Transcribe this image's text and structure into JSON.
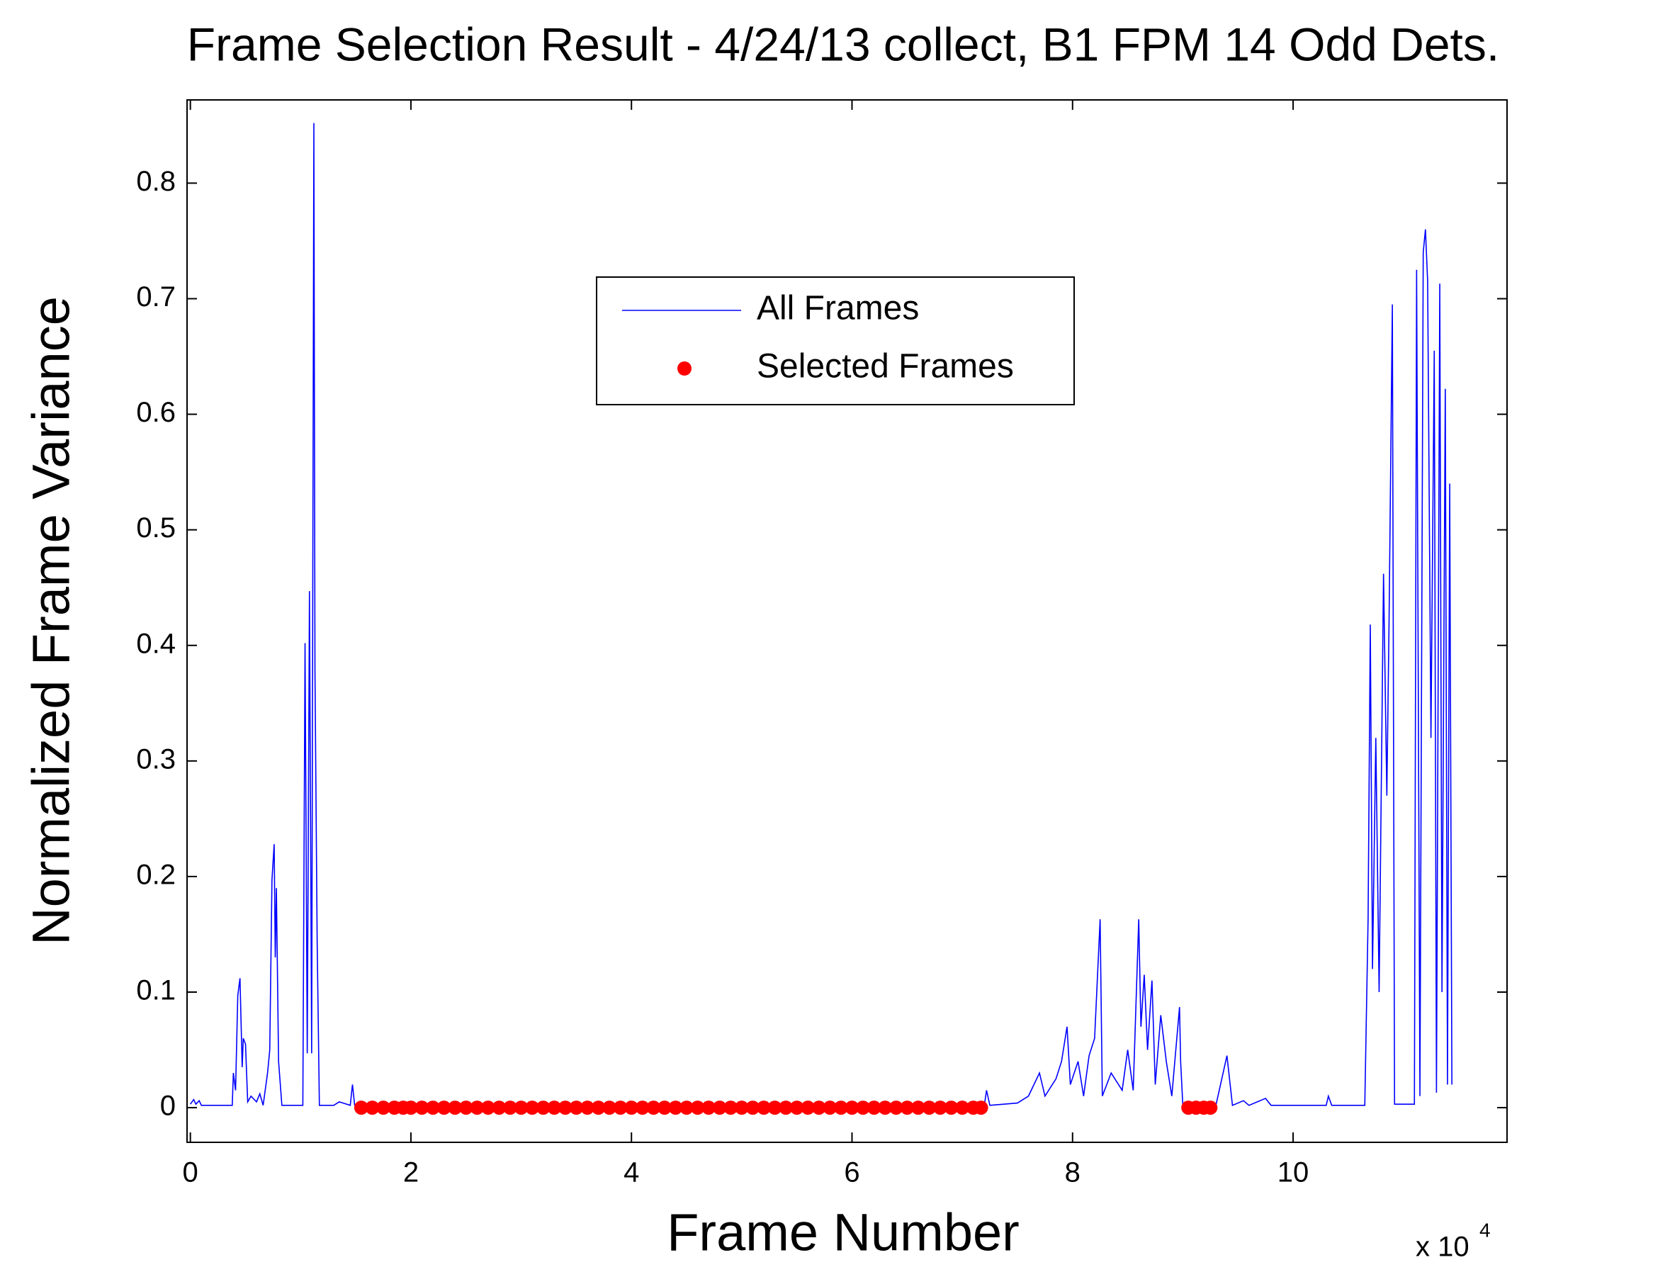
{
  "chart_data": {
    "type": "line",
    "title": "Frame Selection Result - 4/24/13 collect, B1 FPM 14 Odd Dets.",
    "x_label": "Frame Number",
    "y_label": "Normalized Frame Variance",
    "x_multiplier": {
      "base": "x 10",
      "exponent": "4"
    },
    "xlim": [
      -0.03,
      11.94
    ],
    "xticks": [
      0,
      2,
      4,
      6,
      8,
      10
    ],
    "ylim": [
      -0.03,
      0.872
    ],
    "yticks": [
      0,
      0.1,
      0.2,
      0.3,
      0.4,
      0.5,
      0.6,
      0.7,
      0.8
    ],
    "grid": false,
    "legend_position": "north",
    "series": [
      {
        "name": "All Frames",
        "color": "#0000ff",
        "style": "line",
        "x": [
          0.0,
          0.03,
          0.05,
          0.08,
          0.1,
          0.38,
          0.39,
          0.41,
          0.43,
          0.45,
          0.47,
          0.48,
          0.5,
          0.52,
          0.55,
          0.6,
          0.63,
          0.66,
          0.7,
          0.72,
          0.74,
          0.76,
          0.77,
          0.78,
          0.8,
          0.83,
          1.02,
          1.04,
          1.06,
          1.08,
          1.1,
          1.12,
          1.13,
          1.15,
          1.17,
          1.3,
          1.35,
          1.45,
          1.47,
          1.49,
          1.5,
          7.18,
          7.2,
          7.22,
          7.25,
          7.5,
          7.6,
          7.7,
          7.75,
          7.85,
          7.9,
          7.95,
          7.98,
          8.05,
          8.1,
          8.15,
          8.2,
          8.25,
          8.27,
          8.35,
          8.45,
          8.5,
          8.55,
          8.6,
          8.62,
          8.65,
          8.68,
          8.72,
          8.75,
          8.8,
          8.85,
          8.9,
          8.97,
          8.98,
          9.0,
          9.3,
          9.4,
          9.45,
          9.55,
          9.6,
          9.75,
          9.8,
          10.3,
          10.32,
          10.35,
          10.65,
          10.68,
          10.7,
          10.72,
          10.75,
          10.78,
          10.82,
          10.85,
          10.87,
          10.9,
          10.92,
          11.1,
          11.12,
          11.15,
          11.18,
          11.2,
          11.22,
          11.25,
          11.28,
          11.3,
          11.33,
          11.35,
          11.38,
          11.4,
          11.42,
          11.44
        ],
        "values": [
          0.003,
          0.007,
          0.003,
          0.006,
          0.002,
          0.002,
          0.03,
          0.015,
          0.097,
          0.112,
          0.035,
          0.06,
          0.055,
          0.005,
          0.01,
          0.005,
          0.012,
          0.002,
          0.03,
          0.05,
          0.197,
          0.228,
          0.13,
          0.19,
          0.04,
          0.002,
          0.002,
          0.402,
          0.047,
          0.447,
          0.047,
          0.852,
          0.378,
          0.143,
          0.002,
          0.002,
          0.005,
          0.002,
          0.02,
          0.002,
          0.002,
          0.002,
          0.002,
          0.015,
          0.002,
          0.004,
          0.01,
          0.03,
          0.01,
          0.025,
          0.04,
          0.07,
          0.02,
          0.04,
          0.01,
          0.045,
          0.06,
          0.163,
          0.01,
          0.03,
          0.015,
          0.05,
          0.015,
          0.163,
          0.07,
          0.115,
          0.05,
          0.11,
          0.02,
          0.08,
          0.04,
          0.01,
          0.087,
          0.04,
          0.002,
          0.002,
          0.045,
          0.002,
          0.006,
          0.002,
          0.008,
          0.002,
          0.002,
          0.01,
          0.002,
          0.002,
          0.163,
          0.418,
          0.12,
          0.32,
          0.1,
          0.462,
          0.27,
          0.42,
          0.695,
          0.003,
          0.003,
          0.725,
          0.01,
          0.74,
          0.76,
          0.715,
          0.32,
          0.655,
          0.013,
          0.713,
          0.1,
          0.622,
          0.02,
          0.54,
          0.02
        ]
      },
      {
        "name": "Selected Frames",
        "color": "#ff0000",
        "style": "dot",
        "x": [
          1.55,
          1.65,
          1.75,
          1.85,
          1.93,
          2,
          2.1,
          2.2,
          2.3,
          2.4,
          2.5,
          2.6,
          2.7,
          2.8,
          2.9,
          3,
          3.1,
          3.2,
          3.3,
          3.4,
          3.5,
          3.6,
          3.7,
          3.8,
          3.9,
          4,
          4.1,
          4.2,
          4.3,
          4.4,
          4.5,
          4.6,
          4.7,
          4.8,
          4.9,
          5,
          5.1,
          5.2,
          5.3,
          5.4,
          5.5,
          5.6,
          5.7,
          5.8,
          5.9,
          6,
          6.1,
          6.2,
          6.3,
          6.4,
          6.5,
          6.6,
          6.7,
          6.8,
          6.9,
          7,
          7.1,
          7.17,
          9.05,
          9.12,
          9.19,
          9.25
        ],
        "values": [
          0,
          0,
          0,
          0,
          0,
          0,
          0,
          0,
          0,
          0,
          0,
          0,
          0,
          0,
          0,
          0,
          0,
          0,
          0,
          0,
          0,
          0,
          0,
          0,
          0,
          0,
          0,
          0,
          0,
          0,
          0,
          0,
          0,
          0,
          0,
          0,
          0,
          0,
          0,
          0,
          0,
          0,
          0,
          0,
          0,
          0,
          0,
          0,
          0,
          0,
          0,
          0,
          0,
          0,
          0,
          0,
          0,
          0,
          0,
          0,
          0,
          0
        ]
      }
    ]
  }
}
